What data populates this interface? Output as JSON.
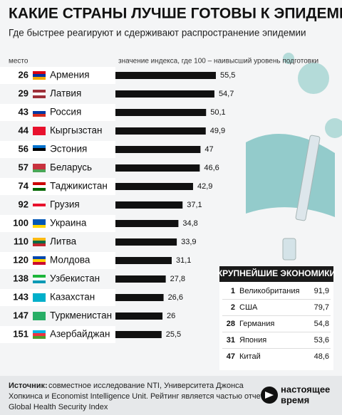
{
  "chart_data": {
    "type": "bar",
    "title": "КАКИЕ СТРАНЫ ЛУЧШЕ ГОТОВЫ К ЭПИДЕМИЯМ",
    "subtitle": "Где быстрее реагируют и сдерживают распространение эпидемии",
    "rank_label": "место",
    "axis_label": "значение индекса, где 100 – наивысший уровень подготовки",
    "ranks": [
      26,
      29,
      43,
      44,
      56,
      57,
      74,
      92,
      100,
      110,
      120,
      138,
      143,
      147,
      151
    ],
    "categories": [
      "Армения",
      "Латвия",
      "Россия",
      "Кыргызстан",
      "Эстония",
      "Беларусь",
      "Таджикистан",
      "Грузия",
      "Украина",
      "Литва",
      "Молдова",
      "Узбекистан",
      "Казахстан",
      "Туркменистан",
      "Азербайджан"
    ],
    "values": [
      55.5,
      54.7,
      50.1,
      49.9,
      47,
      46.6,
      42.9,
      37.1,
      34.8,
      33.9,
      31.1,
      27.8,
      26.6,
      26,
      25.5
    ],
    "value_labels": [
      "55,5",
      "54,7",
      "50,1",
      "49,9",
      "47",
      "46,6",
      "42,9",
      "37,1",
      "34,8",
      "33,9",
      "31,1",
      "27,8",
      "26,6",
      "26",
      "25,5"
    ],
    "color": "#111111",
    "xlim": [
      0,
      100
    ]
  },
  "inset": {
    "title": "КРУПНЕЙШИЕ ЭКОНОМИКИ",
    "ranks": [
      1,
      2,
      28,
      31,
      47
    ],
    "countries": [
      "Великобритания",
      "США",
      "Германия",
      "Япония",
      "Китай"
    ],
    "values": [
      91.9,
      79.7,
      54.8,
      53.6,
      48.6
    ],
    "value_labels": [
      "91,9",
      "79,7",
      "54,8",
      "53,6",
      "48,6"
    ]
  },
  "footer": {
    "source_label": "Источник:",
    "source_lines": [
      "совместное исследование NTI, Университета Джонса",
      "Хопкинса и Economist Intelligence Unit. Рейтинг является частью отчета",
      "Global Health Security Index"
    ],
    "logo_line1": "настоящее",
    "logo_line2": "время"
  }
}
